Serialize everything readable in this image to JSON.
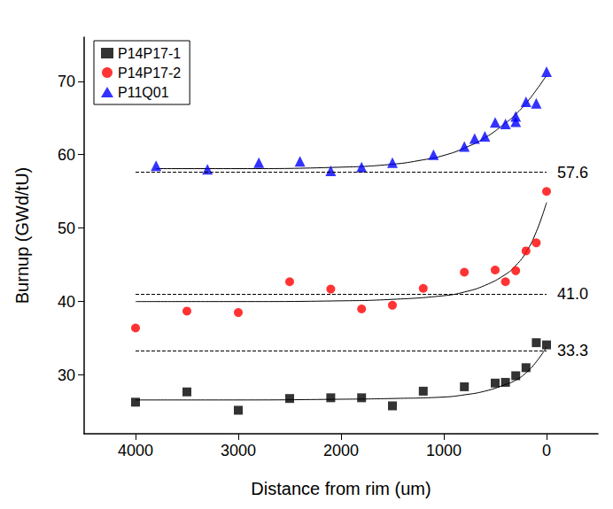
{
  "chart_data": {
    "type": "scatter",
    "x_label": "Distance from rim (um)",
    "y_label": "Burnup (GWd/tU)",
    "xlim": [
      4500,
      -500
    ],
    "xticks": [
      4000,
      3000,
      2000,
      1000,
      0
    ],
    "ylim": [
      22,
      76
    ],
    "yticks": [
      30,
      40,
      50,
      60,
      70
    ],
    "grid": false,
    "legend": "top-left",
    "series": [
      {
        "name": "P14P17-1",
        "color": "#000000",
        "marker": "square",
        "x": [
          4000,
          3500,
          3000,
          2500,
          2100,
          1800,
          1500,
          1200,
          800,
          500,
          400,
          300,
          200,
          100,
          0
        ],
        "values": [
          26.3,
          27.7,
          25.2,
          26.8,
          26.9,
          26.9,
          25.8,
          27.8,
          28.4,
          28.9,
          29.0,
          29.9,
          31.0,
          34.4,
          34.1
        ],
        "fit": {
          "x": [
            4000,
            3000,
            2000,
            1500,
            1000,
            800,
            600,
            400,
            300,
            200,
            100,
            0
          ],
          "values": [
            26.6,
            26.6,
            26.7,
            26.8,
            27.0,
            27.3,
            27.8,
            28.7,
            29.3,
            30.3,
            31.8,
            33.8
          ]
        },
        "reference": {
          "value": 33.3,
          "label": "33.3",
          "x": [
            4000,
            0
          ]
        }
      },
      {
        "name": "P14P17-2",
        "color": "#ff0000",
        "marker": "circle",
        "x": [
          4000,
          3500,
          3000,
          2500,
          2100,
          1800,
          1500,
          1200,
          800,
          500,
          400,
          300,
          200,
          100,
          0
        ],
        "values": [
          36.4,
          38.7,
          38.5,
          42.7,
          41.7,
          39.0,
          39.5,
          41.8,
          44.0,
          44.3,
          42.7,
          44.2,
          46.9,
          48.0,
          55.0
        ],
        "fit": {
          "x": [
            4000,
            3000,
            2000,
            1500,
            1000,
            800,
            600,
            400,
            300,
            200,
            100,
            0
          ],
          "values": [
            40.0,
            40.0,
            40.1,
            40.3,
            40.8,
            41.3,
            42.2,
            43.7,
            44.9,
            46.7,
            49.5,
            53.5
          ]
        },
        "reference": {
          "value": 41.0,
          "label": "41.0",
          "x": [
            4000,
            0
          ]
        }
      },
      {
        "name": "P11Q01",
        "color": "#0000ff",
        "marker": "triangle",
        "x": [
          3800,
          3300,
          2800,
          2400,
          2100,
          1800,
          1500,
          1100,
          800,
          700,
          600,
          500,
          400,
          300,
          300,
          200,
          100,
          0
        ],
        "values": [
          58.5,
          58.0,
          58.9,
          59.1,
          57.8,
          58.3,
          58.9,
          60.0,
          61.1,
          62.2,
          62.5,
          64.4,
          64.2,
          64.5,
          65.2,
          67.2,
          67.0,
          71.3
        ],
        "fit": {
          "x": [
            3800,
            3000,
            2000,
            1500,
            1200,
            1000,
            800,
            600,
            400,
            300,
            200,
            100,
            0
          ],
          "values": [
            58.1,
            58.1,
            58.3,
            58.7,
            59.3,
            59.9,
            60.9,
            62.3,
            64.3,
            65.5,
            67.0,
            68.8,
            70.8
          ]
        },
        "reference": {
          "value": 57.6,
          "label": "57.6",
          "x": [
            4000,
            0
          ]
        }
      }
    ]
  }
}
